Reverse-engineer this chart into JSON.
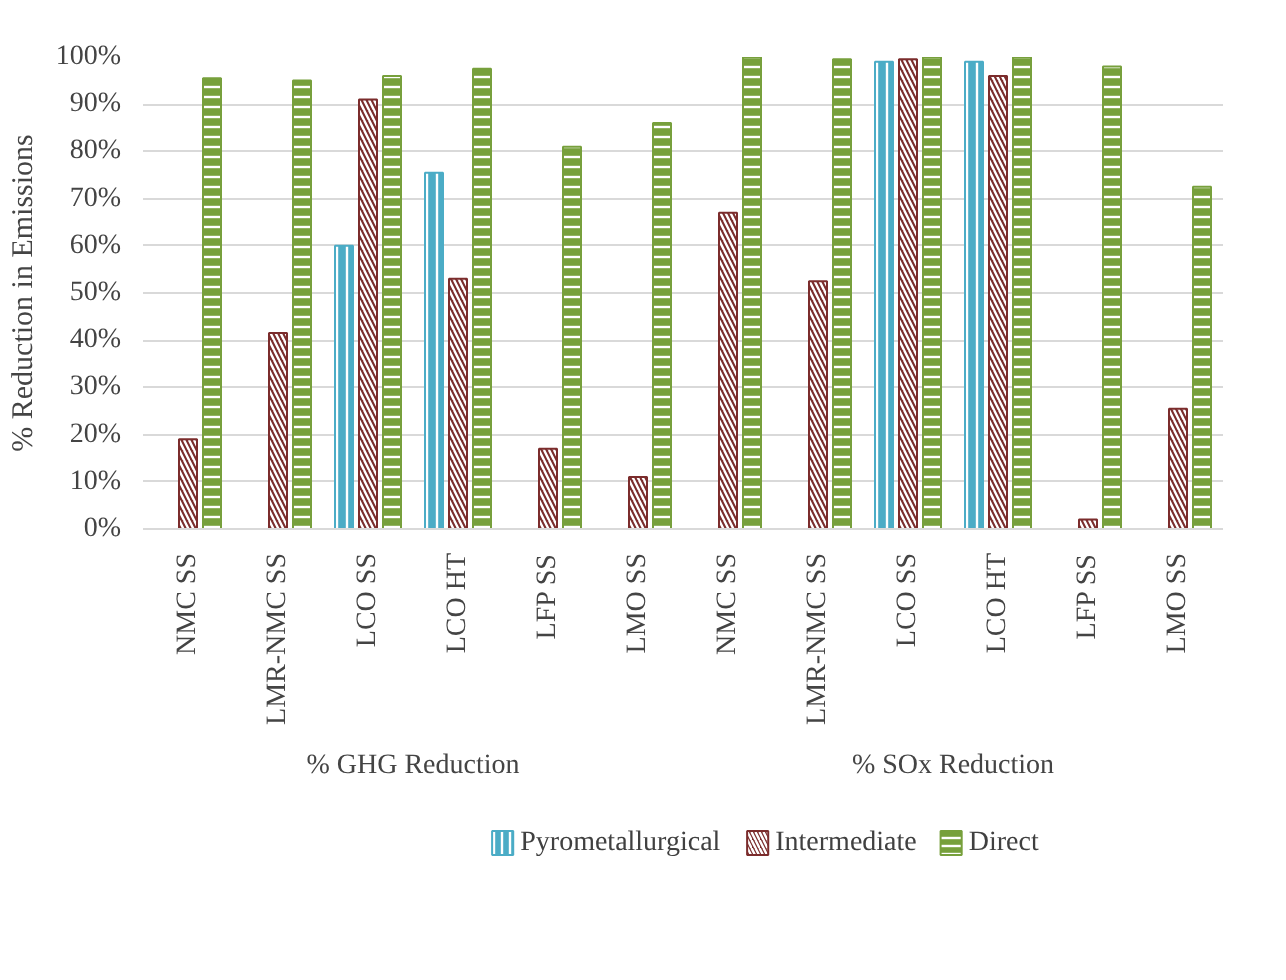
{
  "chart_data": {
    "type": "bar",
    "ylabel": "% Reduction in Emissions",
    "categories": [
      "NMC SS",
      "LMR-NMC SS",
      "LCO SS",
      "LCO HT",
      "LFP SS",
      "LMO SS",
      "NMC SS",
      "LMR-NMC SS",
      "LCO SS",
      "LCO HT",
      "LFP SS",
      "LMO SS"
    ],
    "annotations": [
      "% GHG Reduction",
      "% SOx Reduction"
    ],
    "series": [
      {
        "name": "Pyrometallurgical",
        "color": "#4bacc6",
        "values": [
          null,
          null,
          60,
          75.5,
          null,
          null,
          null,
          null,
          99,
          99,
          null,
          null
        ]
      },
      {
        "name": "Intermediate",
        "color": "#7b2c2c",
        "values": [
          19,
          41.5,
          91,
          53,
          17,
          11,
          67,
          52.5,
          99.5,
          96,
          2,
          25.5
        ]
      },
      {
        "name": "Direct",
        "color": "#77a03c",
        "values": [
          95.5,
          95,
          96,
          97.5,
          81,
          86,
          100,
          99.5,
          100,
          100,
          98,
          72.5
        ]
      }
    ],
    "ylim": [
      0,
      100
    ],
    "yticks": [
      {
        "value": 0,
        "label": "0%"
      },
      {
        "value": 10,
        "label": "10%"
      },
      {
        "value": 20,
        "label": "20%"
      },
      {
        "value": 30,
        "label": "30%"
      },
      {
        "value": 40,
        "label": "40%"
      },
      {
        "value": 50,
        "label": "50%"
      },
      {
        "value": 60,
        "label": "60%"
      },
      {
        "value": 70,
        "label": "70%"
      },
      {
        "value": 80,
        "label": "80%"
      },
      {
        "value": 90,
        "label": "90%"
      },
      {
        "value": 100,
        "label": "100%"
      }
    ],
    "grid": "y",
    "legend": "bottom"
  }
}
